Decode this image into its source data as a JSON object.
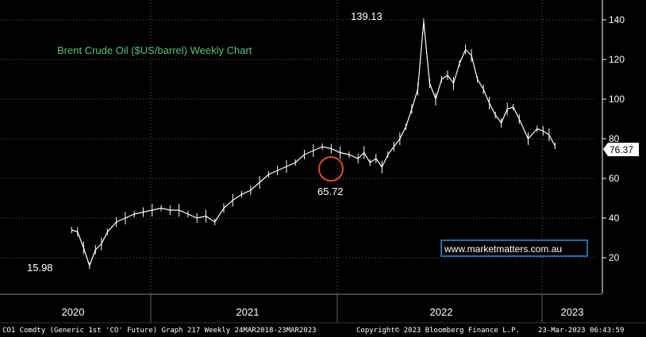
{
  "chart_data": {
    "type": "line",
    "title": "Brent Crude Oil ($US/barrel) Weekly Chart",
    "xlabel": "",
    "ylabel": "",
    "ylim": [
      2,
      150
    ],
    "y_ticks": [
      "20",
      "40",
      "60",
      "80",
      "100",
      "120",
      "140"
    ],
    "grid": true,
    "x_axis_labels": [
      "2020",
      "2021",
      "2022",
      "2023"
    ],
    "series": [
      {
        "x": [
          2020.0,
          2020.04,
          2020.08,
          2020.12,
          2020.16,
          2020.2,
          2020.24,
          2020.3,
          2020.36,
          2020.42,
          2020.48,
          2020.54,
          2020.6,
          2020.66,
          2020.72,
          2020.78,
          2020.84,
          2020.9,
          2020.96,
          2021.02,
          2021.08,
          2021.14,
          2021.2,
          2021.26,
          2021.32,
          2021.38,
          2021.44,
          2021.5,
          2021.56,
          2021.62,
          2021.68,
          2021.74,
          2021.8,
          2021.86,
          2021.92,
          2021.96,
          2022.0,
          2022.04,
          2022.08,
          2022.12,
          2022.16,
          2022.2,
          2022.24,
          2022.28,
          2022.32,
          2022.36,
          2022.4,
          2022.44,
          2022.48,
          2022.52,
          2022.56,
          2022.6,
          2022.64,
          2022.68,
          2022.72,
          2022.76,
          2022.8,
          2022.84,
          2022.88,
          2022.92,
          2022.96,
          2023.0,
          2023.06,
          2023.12,
          2023.16,
          2023.2,
          2023.24
        ],
        "y": [
          34,
          33,
          25,
          15.98,
          24,
          27,
          33,
          38,
          40,
          42,
          43,
          44,
          45,
          44,
          44,
          42,
          40,
          41,
          38,
          45,
          49,
          52,
          54,
          58,
          62,
          64,
          66,
          68,
          72,
          74,
          76,
          75,
          73,
          72,
          70,
          73,
          68,
          70,
          65.72,
          72,
          76,
          80,
          86,
          95,
          105,
          139.13,
          108,
          100,
          110,
          112,
          108,
          118,
          125,
          122,
          110,
          105,
          98,
          92,
          88,
          95,
          96,
          90,
          80,
          85,
          84,
          82,
          76.37
        ]
      }
    ],
    "annotations": {
      "low": "15.98",
      "mid_low": "65.72",
      "high": "139.13"
    },
    "last_price": "76.37",
    "watermark": "www.marketmatters.com.au",
    "footer_left": "CO1 Comdty (Generic 1st 'CO' Future) Graph 217  Weekly 24MAR2018-23MAR2023",
    "footer_mid": "Copyright© 2023 Bloomberg Finance L.P.",
    "footer_right": "23-Mar-2023 06:43:59",
    "colors": {
      "background": "#000000",
      "plot_bg": "#000000",
      "grid": "#5a5a8a",
      "title": "#53c27a",
      "price": "#ffffff",
      "circle": "#e04a2a",
      "watermark_border": "#2d8fd0"
    }
  }
}
